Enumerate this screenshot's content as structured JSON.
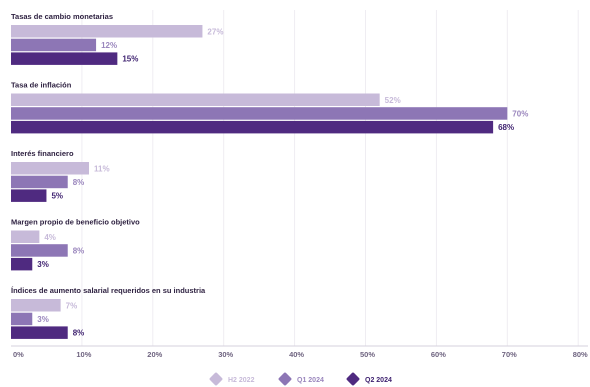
{
  "chart_data": {
    "type": "bar",
    "orientation": "horizontal",
    "categories": [
      "Tasas de cambio monetarias",
      "Tasa de inflación",
      "Interés financiero",
      "Margen propio de beneficio objetivo",
      "Índices de aumento salarial requeridos en su industria"
    ],
    "series": [
      {
        "name": "H2 2022",
        "values": [
          27,
          52,
          11,
          4,
          7
        ],
        "labels": [
          "27%",
          "52%",
          "11%",
          "4%",
          "7%"
        ],
        "color": "#c7bad9",
        "label_color": "#c7bad9"
      },
      {
        "name": "Q1 2024",
        "values": [
          12,
          70,
          8,
          8,
          3
        ],
        "labels": [
          "12%",
          "70%",
          "8%",
          "8%",
          "3%"
        ],
        "color": "#8d76b5",
        "label_color": "#9a86bd"
      },
      {
        "name": "Q2 2024",
        "values": [
          15,
          68,
          5,
          3,
          8
        ],
        "labels": [
          "15%",
          "68%",
          "5%",
          "3%",
          "8%"
        ],
        "color": "#4f2a80",
        "label_color": "#3f2270"
      }
    ],
    "xlim": [
      0,
      80
    ],
    "x_ticks": [
      0,
      10,
      20,
      30,
      40,
      50,
      60,
      70,
      80
    ],
    "x_tick_labels": [
      "0%",
      "10%",
      "20%",
      "30%",
      "40%",
      "50%",
      "60%",
      "70%",
      "80%"
    ],
    "grid": true,
    "legend": "bottom-center"
  }
}
